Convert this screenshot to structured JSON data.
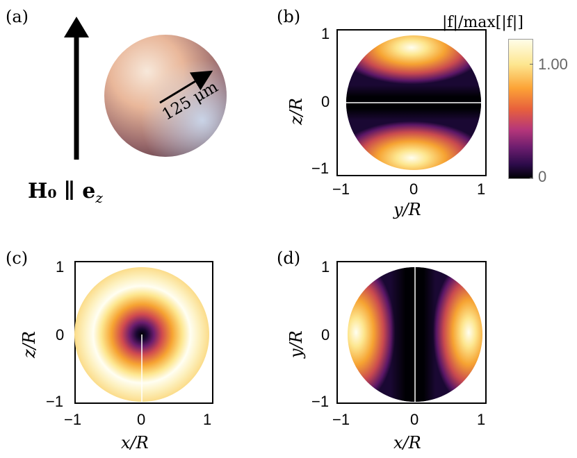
{
  "panels": {
    "a": {
      "label": "(a)",
      "scale_text": "125 μm",
      "field_label": "H₀ ∥ e",
      "field_sub": "z"
    },
    "b": {
      "label": "(b)",
      "xlabel": "y/R",
      "ylabel": "z/R",
      "xticks": [
        "−1",
        "0",
        "1"
      ],
      "yticks": [
        "1",
        "0",
        "−1"
      ],
      "pattern": "two lobes at top and bottom, dark horizontal band at z=0"
    },
    "c": {
      "label": "(c)",
      "xlabel": "x/R",
      "ylabel": "z/R",
      "xticks": [
        "−1",
        "0",
        "1"
      ],
      "yticks": [
        "1",
        "0",
        "−1"
      ],
      "pattern": "radially symmetric ring, dark at center"
    },
    "d": {
      "label": "(d)",
      "xlabel": "x/R",
      "ylabel": "y/R",
      "xticks": [
        "−1",
        "0",
        "1"
      ],
      "yticks": [
        "1",
        "0",
        "−1"
      ],
      "pattern": "two lobes left and right, dark vertical band at x=0"
    }
  },
  "colorbar": {
    "title": "|f|/max[|f|]",
    "ticks": [
      "1.00",
      "0"
    ],
    "colors": [
      "#000004",
      "#2c0b4a",
      "#6b1d6e",
      "#b5367a",
      "#e8613c",
      "#fca336",
      "#fde68f",
      "#fffde8"
    ]
  }
}
